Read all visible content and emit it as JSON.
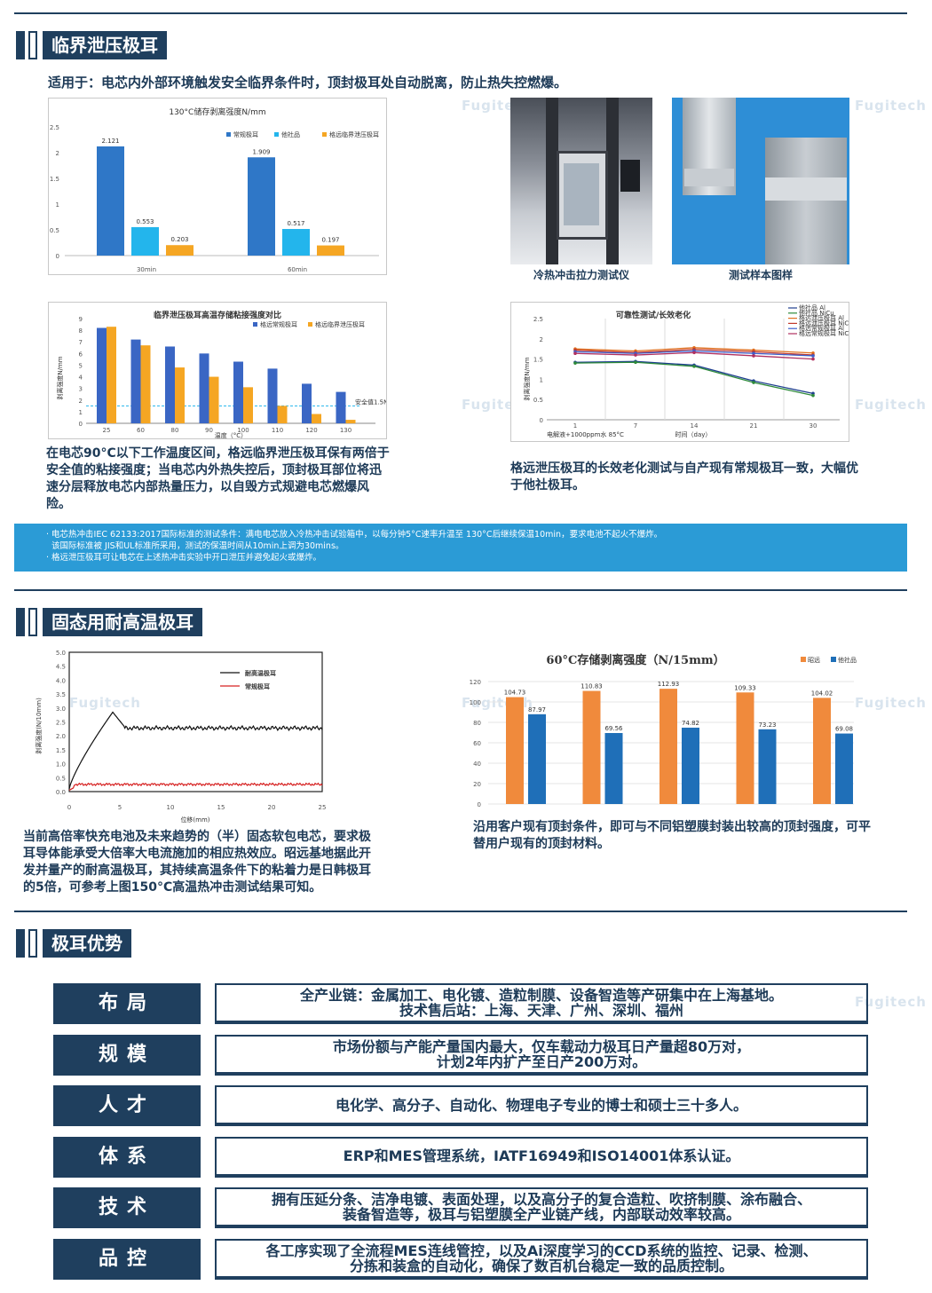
{
  "brand": {
    "watermark": "Fugitech"
  },
  "section1": {
    "title": "临界泄压极耳",
    "intro": "适用于：电芯内外部环境触发安全临界条件时，顶封极耳处自动脱离，防止热失控燃爆。",
    "chart1": {
      "title": "130°C储存剥离强度N/mm",
      "legend": [
        "常规极耳",
        "他社品",
        "格远临界泄压极耳"
      ],
      "colors": [
        "#2f77c7",
        "#23b5ec",
        "#f5a623"
      ],
      "categories": [
        "30min",
        "60min"
      ],
      "yticks": [
        "0",
        "0.5",
        "1",
        "1.5",
        "2",
        "2.5"
      ],
      "values": [
        [
          2.121,
          0.553,
          0.203
        ],
        [
          1.909,
          0.517,
          0.197
        ]
      ],
      "labels": [
        [
          "2.121",
          "0.553",
          "0.203"
        ],
        [
          "1.909",
          "0.517",
          "0.197"
        ]
      ]
    },
    "photo1_caption": "冷热冲击拉力测试仪",
    "photo2_caption": "测试样本图样",
    "chart2": {
      "title": "临界泄压极耳高温存储粘接强度对比",
      "legend": [
        "格远常规极耳",
        "格远临界泄压极耳"
      ],
      "ylabel": "剥离强度N/mm",
      "xlabel": "温度（°C）",
      "categories": [
        "25",
        "60",
        "80",
        "90",
        "100",
        "110",
        "120",
        "130"
      ],
      "yticks": [
        "0",
        "1",
        "2",
        "3",
        "4",
        "5",
        "6",
        "7",
        "8",
        "9"
      ],
      "series1": [
        8.2,
        7.2,
        6.6,
        6.0,
        5.3,
        4.7,
        3.4,
        2.7
      ],
      "series2": [
        8.3,
        6.7,
        4.8,
        4.0,
        3.1,
        1.5,
        0.8,
        0.3
      ],
      "safety_label": "安全值1.5N/mm",
      "safety_value": 1.5
    },
    "chart2_text": "在电芯90°C以下工作温度区间，格远临界泄压极耳保有两倍于安全值的粘接强度；当电芯内外热失控后，顶封极耳部位将迅速分层释放电芯内部热量压力，以自毁方式规避电芯燃爆风险。",
    "chart3": {
      "title": "可靠性测试/长效老化",
      "ylabel": "剥离强度N/mm",
      "xlabel": "时间（day）",
      "xnote": "电解液+1000ppm水 85°C",
      "categories": [
        "1",
        "7",
        "14",
        "21",
        "30"
      ],
      "yticks": [
        "0",
        "0.5",
        "1",
        "1.5",
        "2",
        "2.5"
      ],
      "legend": [
        "他社品 Al",
        "他社品 NiCu",
        "格远泄压极耳 Al",
        "格远泄压极耳 NiCu",
        "格远常规极耳 Al",
        "格远常规极耳 NiCu"
      ],
      "colors": [
        "#1f3f8f",
        "#2e8b3a",
        "#e07020",
        "#c0392b",
        "#3a5fcd",
        "#b03060"
      ],
      "series": [
        [
          1.42,
          1.44,
          1.35,
          0.96,
          0.65
        ],
        [
          1.4,
          1.42,
          1.32,
          0.92,
          0.6
        ],
        [
          1.75,
          1.7,
          1.78,
          1.72,
          1.65
        ],
        [
          1.72,
          1.66,
          1.74,
          1.68,
          1.6
        ],
        [
          1.68,
          1.64,
          1.7,
          1.64,
          1.58
        ],
        [
          1.64,
          1.6,
          1.66,
          1.58,
          1.5
        ]
      ]
    },
    "chart3_text": "格远泄压极耳的长效老化测试与自产现有常规极耳一致，大幅优于他社极耳。",
    "notice": [
      "· 电芯热冲击IEC 62133:2017国际标准的测试条件：满电电芯放入冷热冲击试验箱中，以每分钟5°C速率升温至 130°C后继续保温10min，要求电池不起火不爆炸。",
      "  该国际标准被 JIS和UL标准所采用，测试的保温时间从10min上调为30mins。",
      "· 格远泄压极耳可让电芯在上述热冲击实验中开口泄压并避免起火或爆炸。"
    ]
  },
  "section2": {
    "title": "固态用耐高温极耳",
    "chart4": {
      "legend": [
        "耐高温极耳",
        "常规极耳"
      ],
      "colors": [
        "#111111",
        "#d62020"
      ],
      "ylabel": "剥离强度(N/10mm)",
      "xlabel": "位移(mm)",
      "xticks": [
        "0",
        "5",
        "10",
        "15",
        "20",
        "25"
      ],
      "yticks": [
        "0.0",
        "0.5",
        "1.0",
        "1.5",
        "2.0",
        "2.5",
        "3.0",
        "3.5",
        "4.0",
        "4.5",
        "5.0"
      ]
    },
    "chart4_text": "当前高倍率快充电池及未来趋势的（半）固态软包电芯，要求极耳导体能承受大倍率大电流施加的相应热效应。昭远基地据此开发并量产的耐高温极耳，其持续高温条件下的粘着力是日韩极耳的5倍，可参考上图150°C高温热冲击测试结果可知。",
    "chart5": {
      "title": "60°C存储剥离强度（N/15mm）",
      "legend": [
        "昭远",
        "他社品"
      ],
      "colors": [
        "#f08a3c",
        "#1f6fb8"
      ],
      "yticks": [
        "0",
        "20",
        "40",
        "60",
        "80",
        "100",
        "120"
      ],
      "series1": [
        104.73,
        110.83,
        112.93,
        109.33,
        104.02
      ],
      "series2": [
        87.97,
        69.56,
        74.82,
        73.23,
        69.08
      ],
      "labels1": [
        "104.73",
        "110.83",
        "112.93",
        "109.33",
        "104.02"
      ],
      "labels2": [
        "87.97",
        "69.56",
        "74.82",
        "73.23",
        "69.08"
      ]
    },
    "chart5_text": "沿用客户现有顶封条件，即可与不同铝塑膜封装出较高的顶封强度，可平替用户现有的顶封材料。"
  },
  "section3": {
    "title": "极耳优势",
    "rows": [
      {
        "key": "布局",
        "value": "全产业链：金属加工、电化镀、造粒制膜、设备智造等产研集中在上海基地。\n技术售后站：上海、天津、广州、深圳、福州"
      },
      {
        "key": "规模",
        "value": "市场份额与产能产量国内最大，仅车载动力极耳日产量超80万对，\n计划2年内扩产至日产200万对。"
      },
      {
        "key": "人才",
        "value": "电化学、高分子、自动化、物理电子专业的博士和硕士三十多人。"
      },
      {
        "key": "体系",
        "value": "ERP和MES管理系统，IATF16949和ISO14001体系认证。"
      },
      {
        "key": "技术",
        "value": "拥有压延分条、洁净电镀、表面处理，以及高分子的复合造粒、吹挤制膜、涂布融合、\n装备智造等，极耳与铝塑膜全产业链产线，内部联动效率较高。"
      },
      {
        "key": "品控",
        "value": "各工序实现了全流程MES连线管控，以及Ai深度学习的CCD系统的监控、记录、检测、\n分拣和装盒的自动化，确保了数百机台稳定一致的品质控制。"
      }
    ]
  }
}
